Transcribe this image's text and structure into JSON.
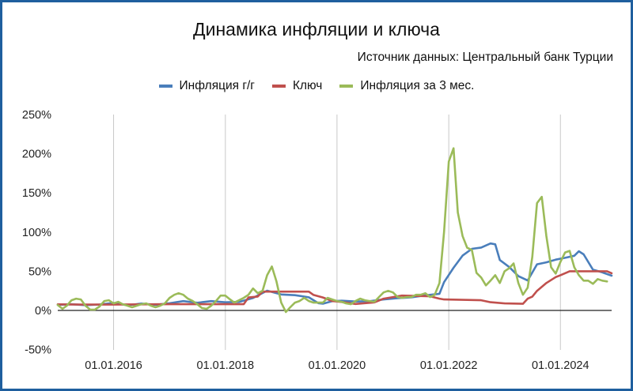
{
  "chart_data": {
    "type": "line",
    "title": "Динамика инфляции и ключа",
    "subtitle": "Источник данных: Центральный банк Турции",
    "legend_position": "top",
    "ylim": [
      -50,
      250
    ],
    "y_ticks": [
      -50,
      0,
      50,
      100,
      150,
      200,
      250
    ],
    "y_tick_labels": [
      "-50%",
      "0%",
      "50%",
      "100%",
      "150%",
      "200%",
      "250%"
    ],
    "x_ticks": [
      "2016-01-01",
      "2018-01-01",
      "2020-01-01",
      "2022-01-01",
      "2024-01-01"
    ],
    "x_tick_labels": [
      "01.01.2016",
      "01.01.2018",
      "01.01.2020",
      "01.01.2022",
      "01.01.2024"
    ],
    "xlim": [
      "2015-01-01",
      "2024-12-01"
    ],
    "grid": "vertical",
    "series": [
      {
        "name": "Инфляция г/г",
        "color": "#4a7ebb",
        "points": [
          [
            "2015-01-01",
            7.2
          ],
          [
            "2015-04-01",
            7.9
          ],
          [
            "2015-07-01",
            6.8
          ],
          [
            "2015-10-01",
            7.6
          ],
          [
            "2016-01-01",
            9.6
          ],
          [
            "2016-04-01",
            6.6
          ],
          [
            "2016-07-01",
            8.8
          ],
          [
            "2016-10-01",
            7.2
          ],
          [
            "2017-01-01",
            9.2
          ],
          [
            "2017-04-01",
            11.9
          ],
          [
            "2017-07-01",
            9.8
          ],
          [
            "2017-10-01",
            11.9
          ],
          [
            "2018-01-01",
            10.4
          ],
          [
            "2018-04-01",
            10.9
          ],
          [
            "2018-07-01",
            15.9
          ],
          [
            "2018-10-01",
            25.2
          ],
          [
            "2019-01-01",
            20.4
          ],
          [
            "2019-04-01",
            19.5
          ],
          [
            "2019-07-01",
            16.7
          ],
          [
            "2019-09-01",
            9.3
          ],
          [
            "2019-10-01",
            8.6
          ],
          [
            "2019-12-01",
            11.8
          ],
          [
            "2020-02-01",
            12.4
          ],
          [
            "2020-05-01",
            11.4
          ],
          [
            "2020-08-01",
            11.8
          ],
          [
            "2020-11-01",
            14.0
          ],
          [
            "2021-02-01",
            15.6
          ],
          [
            "2021-05-01",
            16.6
          ],
          [
            "2021-08-01",
            19.3
          ],
          [
            "2021-11-01",
            21.3
          ],
          [
            "2021-12-01",
            36.1
          ],
          [
            "2022-02-01",
            54.4
          ],
          [
            "2022-04-01",
            70.0
          ],
          [
            "2022-06-01",
            78.6
          ],
          [
            "2022-08-01",
            80.2
          ],
          [
            "2022-10-01",
            85.5
          ],
          [
            "2022-11-01",
            84.4
          ],
          [
            "2022-12-01",
            64.3
          ],
          [
            "2023-02-01",
            55.2
          ],
          [
            "2023-04-01",
            43.7
          ],
          [
            "2023-06-01",
            38.2
          ],
          [
            "2023-08-01",
            58.9
          ],
          [
            "2023-10-01",
            61.4
          ],
          [
            "2023-12-01",
            64.8
          ],
          [
            "2024-02-01",
            67.1
          ],
          [
            "2024-04-01",
            69.8
          ],
          [
            "2024-05-01",
            75.5
          ],
          [
            "2024-06-01",
            71.6
          ],
          [
            "2024-08-01",
            52.0
          ],
          [
            "2024-10-01",
            48.6
          ],
          [
            "2024-12-01",
            44.4
          ]
        ]
      },
      {
        "name": "Ключ",
        "color": "#c0504d",
        "points": [
          [
            "2015-01-01",
            7.75
          ],
          [
            "2015-06-01",
            7.5
          ],
          [
            "2016-01-01",
            7.5
          ],
          [
            "2017-01-01",
            8.0
          ],
          [
            "2017-10-01",
            8.0
          ],
          [
            "2018-05-01",
            8.0
          ],
          [
            "2018-06-01",
            16.5
          ],
          [
            "2018-08-01",
            17.75
          ],
          [
            "2018-09-01",
            24.0
          ],
          [
            "2019-07-01",
            24.0
          ],
          [
            "2019-08-01",
            19.75
          ],
          [
            "2019-10-01",
            16.5
          ],
          [
            "2019-12-01",
            12.0
          ],
          [
            "2020-02-01",
            10.75
          ],
          [
            "2020-05-01",
            8.25
          ],
          [
            "2020-09-01",
            10.25
          ],
          [
            "2020-11-01",
            15.0
          ],
          [
            "2021-01-01",
            17.0
          ],
          [
            "2021-03-01",
            19.0
          ],
          [
            "2021-09-01",
            18.0
          ],
          [
            "2021-11-01",
            15.0
          ],
          [
            "2021-12-01",
            14.0
          ],
          [
            "2022-08-01",
            13.0
          ],
          [
            "2022-10-01",
            10.5
          ],
          [
            "2023-01-01",
            9.0
          ],
          [
            "2023-05-01",
            8.5
          ],
          [
            "2023-06-01",
            15.0
          ],
          [
            "2023-07-01",
            17.5
          ],
          [
            "2023-08-01",
            25.0
          ],
          [
            "2023-10-01",
            35.0
          ],
          [
            "2023-12-01",
            42.5
          ],
          [
            "2024-01-01",
            45.0
          ],
          [
            "2024-03-01",
            50.0
          ],
          [
            "2024-11-01",
            50.0
          ],
          [
            "2024-12-01",
            47.5
          ]
        ]
      },
      {
        "name": "Инфляция за 3 мес.",
        "color": "#9bbb59",
        "points": [
          [
            "2015-01-01",
            7
          ],
          [
            "2015-02-01",
            2
          ],
          [
            "2015-03-01",
            6
          ],
          [
            "2015-04-01",
            13
          ],
          [
            "2015-05-01",
            15
          ],
          [
            "2015-06-01",
            14
          ],
          [
            "2015-07-01",
            6
          ],
          [
            "2015-08-01",
            1
          ],
          [
            "2015-09-01",
            1
          ],
          [
            "2015-10-01",
            5
          ],
          [
            "2015-11-01",
            12
          ],
          [
            "2015-12-01",
            13
          ],
          [
            "2016-01-01",
            9
          ],
          [
            "2016-02-01",
            11
          ],
          [
            "2016-03-01",
            8
          ],
          [
            "2016-04-01",
            6
          ],
          [
            "2016-05-01",
            4
          ],
          [
            "2016-06-01",
            6
          ],
          [
            "2016-07-01",
            8
          ],
          [
            "2016-08-01",
            9
          ],
          [
            "2016-09-01",
            6
          ],
          [
            "2016-10-01",
            4
          ],
          [
            "2016-11-01",
            6
          ],
          [
            "2016-12-01",
            9
          ],
          [
            "2017-01-01",
            16
          ],
          [
            "2017-02-01",
            20
          ],
          [
            "2017-03-01",
            22
          ],
          [
            "2017-04-01",
            20
          ],
          [
            "2017-05-01",
            15
          ],
          [
            "2017-06-01",
            12
          ],
          [
            "2017-07-01",
            8
          ],
          [
            "2017-08-01",
            3
          ],
          [
            "2017-09-01",
            2
          ],
          [
            "2017-10-01",
            6
          ],
          [
            "2017-11-01",
            12
          ],
          [
            "2017-12-01",
            19
          ],
          [
            "2018-01-01",
            19
          ],
          [
            "2018-02-01",
            14
          ],
          [
            "2018-03-01",
            10
          ],
          [
            "2018-04-01",
            13
          ],
          [
            "2018-05-01",
            16
          ],
          [
            "2018-06-01",
            20
          ],
          [
            "2018-07-01",
            28
          ],
          [
            "2018-08-01",
            22
          ],
          [
            "2018-09-01",
            25
          ],
          [
            "2018-10-01",
            45
          ],
          [
            "2018-11-01",
            56
          ],
          [
            "2018-12-01",
            37
          ],
          [
            "2019-01-01",
            10
          ],
          [
            "2019-02-01",
            -2
          ],
          [
            "2019-03-01",
            4
          ],
          [
            "2019-04-01",
            10
          ],
          [
            "2019-05-01",
            12
          ],
          [
            "2019-06-01",
            16
          ],
          [
            "2019-07-01",
            12
          ],
          [
            "2019-08-01",
            10
          ],
          [
            "2019-09-01",
            10
          ],
          [
            "2019-10-01",
            10
          ],
          [
            "2019-11-01",
            16
          ],
          [
            "2019-12-01",
            14
          ],
          [
            "2020-01-01",
            12
          ],
          [
            "2020-02-01",
            11
          ],
          [
            "2020-03-01",
            9
          ],
          [
            "2020-04-01",
            8
          ],
          [
            "2020-05-01",
            12
          ],
          [
            "2020-06-01",
            15
          ],
          [
            "2020-07-01",
            13
          ],
          [
            "2020-08-01",
            12
          ],
          [
            "2020-09-01",
            11
          ],
          [
            "2020-10-01",
            17
          ],
          [
            "2020-11-01",
            23
          ],
          [
            "2020-12-01",
            25
          ],
          [
            "2021-01-01",
            23
          ],
          [
            "2021-02-01",
            17
          ],
          [
            "2021-03-01",
            16
          ],
          [
            "2021-04-01",
            17
          ],
          [
            "2021-05-01",
            17
          ],
          [
            "2021-06-01",
            20
          ],
          [
            "2021-07-01",
            20
          ],
          [
            "2021-08-01",
            22
          ],
          [
            "2021-09-01",
            17
          ],
          [
            "2021-10-01",
            20
          ],
          [
            "2021-11-01",
            35
          ],
          [
            "2021-12-01",
            100
          ],
          [
            "2022-01-01",
            190
          ],
          [
            "2022-02-01",
            207
          ],
          [
            "2022-03-01",
            125
          ],
          [
            "2022-04-01",
            95
          ],
          [
            "2022-05-01",
            80
          ],
          [
            "2022-06-01",
            77
          ],
          [
            "2022-07-01",
            48
          ],
          [
            "2022-08-01",
            42
          ],
          [
            "2022-09-01",
            32
          ],
          [
            "2022-10-01",
            38
          ],
          [
            "2022-11-01",
            45
          ],
          [
            "2022-12-01",
            35
          ],
          [
            "2023-01-01",
            50
          ],
          [
            "2023-02-01",
            54
          ],
          [
            "2023-03-01",
            60
          ],
          [
            "2023-04-01",
            35
          ],
          [
            "2023-05-01",
            20
          ],
          [
            "2023-06-01",
            29
          ],
          [
            "2023-07-01",
            68
          ],
          [
            "2023-08-01",
            137
          ],
          [
            "2023-09-01",
            145
          ],
          [
            "2023-10-01",
            95
          ],
          [
            "2023-11-01",
            55
          ],
          [
            "2023-12-01",
            47
          ],
          [
            "2024-01-01",
            62
          ],
          [
            "2024-02-01",
            74
          ],
          [
            "2024-03-01",
            76
          ],
          [
            "2024-04-01",
            55
          ],
          [
            "2024-05-01",
            45
          ],
          [
            "2024-06-01",
            38
          ],
          [
            "2024-07-01",
            38
          ],
          [
            "2024-08-01",
            34
          ],
          [
            "2024-09-01",
            40
          ],
          [
            "2024-10-01",
            38
          ],
          [
            "2024-11-01",
            37
          ]
        ]
      }
    ]
  }
}
